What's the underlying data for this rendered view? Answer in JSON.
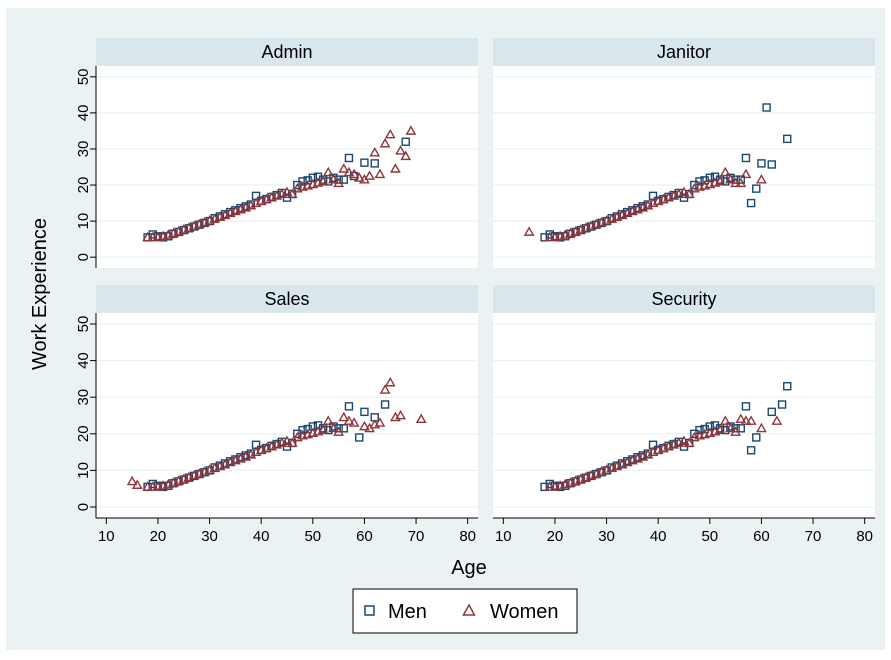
{
  "chart_data": {
    "type": "scatter",
    "xlabel": "Age",
    "ylabel": "Work Experience",
    "xlim": [
      8,
      82
    ],
    "ylim": [
      -3,
      53
    ],
    "xticks": [
      10,
      20,
      30,
      40,
      50,
      60,
      70,
      80
    ],
    "yticks": [
      0,
      10,
      20,
      30,
      40,
      50
    ],
    "grid": true,
    "legend": {
      "position": "bottom-center",
      "entries": [
        "Men",
        "Women"
      ]
    },
    "colors": {
      "men": "#1a476f",
      "women": "#90353b",
      "outer_bg": "#eaf2f3",
      "strip_bg": "#d9e6eb",
      "grid": "#eaf2f3"
    },
    "panels": [
      {
        "title": "Admin",
        "series": [
          {
            "name": "Men",
            "marker": "square",
            "x": [
              18,
              19,
              20,
              21,
              22,
              23,
              24,
              25,
              26,
              27,
              28,
              29,
              30,
              31,
              32,
              33,
              34,
              35,
              36,
              37,
              38,
              39,
              40,
              41,
              42,
              43,
              44,
              45,
              46,
              47,
              48,
              49,
              50,
              51,
              52,
              53,
              54,
              55,
              56,
              57,
              58,
              60,
              62,
              68
            ],
            "y": [
              5.5,
              6.3,
              5.8,
              5.5,
              5.8,
              6.5,
              7,
              7.5,
              8,
              8.5,
              9,
              9.5,
              10,
              10.8,
              11.3,
              11.9,
              12.5,
              13,
              13.6,
              14.1,
              14.6,
              17,
              15.6,
              16.1,
              16.7,
              17.2,
              17.8,
              16.5,
              17.5,
              20,
              21,
              21.3,
              22,
              22.3,
              21.5,
              21,
              22,
              21.5,
              21.5,
              27.5,
              22.5,
              26.2,
              26,
              32
            ]
          },
          {
            "name": "Women",
            "marker": "triangle",
            "x": [
              18,
              19,
              20,
              21,
              22,
              23,
              24,
              25,
              26,
              27,
              28,
              29,
              30,
              31,
              32,
              33,
              34,
              35,
              36,
              37,
              38,
              39,
              40,
              41,
              42,
              43,
              44,
              45,
              46,
              47,
              48,
              49,
              50,
              51,
              52,
              53,
              54,
              55,
              56,
              57,
              58,
              59,
              60,
              61,
              62,
              63,
              64,
              65,
              66,
              67,
              68,
              69
            ],
            "y": [
              5.5,
              5.5,
              5.5,
              5.8,
              6.2,
              6.6,
              7.1,
              7.6,
              8.1,
              8.6,
              9.1,
              9.6,
              10.1,
              10.6,
              11.1,
              11.6,
              12.2,
              12.7,
              13.2,
              13.7,
              14.3,
              15,
              15.5,
              16,
              16.5,
              17,
              17.5,
              18,
              17.5,
              19,
              19.5,
              19.8,
              20.2,
              20.6,
              21,
              23.5,
              21.5,
              20.5,
              24.5,
              23.5,
              23,
              22,
              21.5,
              22.5,
              29,
              23,
              31.5,
              34,
              24.5,
              29.5,
              28,
              35
            ]
          }
        ]
      },
      {
        "title": "Janitor",
        "series": [
          {
            "name": "Men",
            "marker": "square",
            "x": [
              18,
              19,
              20,
              21,
              22,
              23,
              24,
              25,
              26,
              27,
              28,
              29,
              30,
              31,
              32,
              33,
              34,
              35,
              36,
              37,
              38,
              39,
              40,
              41,
              42,
              43,
              44,
              45,
              46,
              47,
              48,
              49,
              50,
              51,
              52,
              53,
              54,
              55,
              56,
              57,
              58,
              59,
              60,
              61,
              62,
              65
            ],
            "y": [
              5.5,
              6.3,
              5.8,
              5.5,
              5.8,
              6.5,
              7,
              7.5,
              8,
              8.5,
              9,
              9.5,
              10,
              10.8,
              11.3,
              11.9,
              12.5,
              13,
              13.6,
              14.1,
              14.6,
              17,
              15.6,
              16.1,
              16.7,
              17.2,
              17.8,
              16.5,
              17.5,
              20,
              21,
              21.3,
              22,
              22.3,
              21.5,
              21,
              22,
              21.5,
              21.5,
              27.5,
              15,
              19,
              26,
              41.5,
              25.7,
              32.8
            ]
          },
          {
            "name": "Women",
            "marker": "triangle",
            "x": [
              15,
              19,
              20,
              21,
              22,
              23,
              24,
              25,
              26,
              27,
              28,
              29,
              30,
              31,
              32,
              33,
              34,
              35,
              36,
              37,
              38,
              39,
              40,
              41,
              42,
              43,
              44,
              45,
              46,
              47,
              48,
              49,
              50,
              51,
              52,
              53,
              54,
              55,
              56,
              57,
              60
            ],
            "y": [
              7,
              5.5,
              5.5,
              5.8,
              6.2,
              6.6,
              7.1,
              7.6,
              8.1,
              8.6,
              9.1,
              9.6,
              10.1,
              10.6,
              11.1,
              11.6,
              12.2,
              12.7,
              13.2,
              13.7,
              14.3,
              15,
              15.5,
              16,
              16.5,
              17,
              17.5,
              18,
              17.5,
              19,
              19.5,
              19.8,
              20.2,
              20.6,
              21,
              23.5,
              21.5,
              20.5,
              20.5,
              23,
              21.5
            ]
          }
        ]
      },
      {
        "title": "Sales",
        "series": [
          {
            "name": "Men",
            "marker": "square",
            "x": [
              18,
              19,
              20,
              21,
              22,
              23,
              24,
              25,
              26,
              27,
              28,
              29,
              30,
              31,
              32,
              33,
              34,
              35,
              36,
              37,
              38,
              39,
              40,
              41,
              42,
              43,
              44,
              45,
              46,
              47,
              48,
              49,
              50,
              51,
              52,
              53,
              54,
              55,
              56,
              57,
              59,
              60,
              62,
              64
            ],
            "y": [
              5.5,
              6.3,
              5.8,
              5.5,
              5.8,
              6.5,
              7,
              7.5,
              8,
              8.5,
              9,
              9.5,
              10,
              10.8,
              11.3,
              11.9,
              12.5,
              13,
              13.6,
              14.1,
              14.6,
              17,
              15.6,
              16.1,
              16.7,
              17.2,
              17.8,
              16.5,
              17.5,
              20,
              21,
              21.3,
              22,
              22.3,
              21.5,
              21,
              22,
              21.5,
              21.5,
              27.5,
              19,
              26,
              24.5,
              28
            ]
          },
          {
            "name": "Women",
            "marker": "triangle",
            "x": [
              15,
              16,
              18,
              19,
              20,
              21,
              22,
              23,
              24,
              25,
              26,
              27,
              28,
              29,
              30,
              31,
              32,
              33,
              34,
              35,
              36,
              37,
              38,
              39,
              40,
              41,
              42,
              43,
              44,
              45,
              46,
              47,
              48,
              49,
              50,
              51,
              52,
              53,
              54,
              55,
              56,
              57,
              58,
              60,
              61,
              62,
              63,
              64,
              65,
              66,
              67,
              71
            ],
            "y": [
              7,
              6,
              5.5,
              5.5,
              5.5,
              5.8,
              6.2,
              6.6,
              7.1,
              7.6,
              8.1,
              8.6,
              9.1,
              9.6,
              10.1,
              10.6,
              11.1,
              11.6,
              12.2,
              12.7,
              13.2,
              13.7,
              14.3,
              15,
              15.5,
              16,
              16.5,
              17,
              17.5,
              18,
              17.5,
              19,
              19.5,
              19.8,
              20.2,
              20.6,
              21,
              23.5,
              21.5,
              20.5,
              24.5,
              23.5,
              23,
              22,
              21.5,
              22.5,
              23,
              32,
              34,
              24.5,
              25,
              24
            ]
          }
        ]
      },
      {
        "title": "Security",
        "series": [
          {
            "name": "Men",
            "marker": "square",
            "x": [
              18,
              19,
              20,
              21,
              22,
              23,
              24,
              25,
              26,
              27,
              28,
              29,
              30,
              31,
              32,
              33,
              34,
              35,
              36,
              37,
              38,
              39,
              40,
              41,
              42,
              43,
              44,
              45,
              46,
              47,
              48,
              49,
              50,
              51,
              52,
              53,
              54,
              55,
              56,
              57,
              58,
              59,
              62,
              64,
              65
            ],
            "y": [
              5.5,
              6.3,
              5.8,
              5.5,
              5.8,
              6.5,
              7,
              7.5,
              8,
              8.5,
              9,
              9.5,
              10,
              10.8,
              11.3,
              11.9,
              12.5,
              13,
              13.6,
              14.1,
              14.6,
              17,
              15.6,
              16.1,
              16.7,
              17.2,
              17.8,
              16.5,
              17.5,
              20,
              21,
              21.3,
              22,
              22.3,
              21.5,
              21,
              22,
              21.5,
              21.5,
              27.5,
              15.5,
              19,
              26,
              28,
              33
            ]
          },
          {
            "name": "Women",
            "marker": "triangle",
            "x": [
              19,
              20,
              21,
              22,
              23,
              24,
              25,
              26,
              27,
              28,
              29,
              30,
              31,
              32,
              33,
              34,
              35,
              36,
              37,
              38,
              39,
              40,
              41,
              42,
              43,
              44,
              45,
              46,
              47,
              48,
              49,
              50,
              51,
              52,
              53,
              54,
              55,
              56,
              57,
              58,
              60,
              63
            ],
            "y": [
              5.5,
              5.5,
              5.8,
              6.2,
              6.6,
              7.1,
              7.6,
              8.1,
              8.6,
              9.1,
              9.6,
              10.1,
              10.6,
              11.1,
              11.6,
              12.2,
              12.7,
              13.2,
              13.7,
              14.3,
              15,
              15.5,
              16,
              16.5,
              17,
              17.5,
              18,
              17.5,
              19,
              19.5,
              19.8,
              20.2,
              20.6,
              21,
              23.5,
              21.5,
              20.5,
              24,
              23.5,
              23.5,
              21.5,
              23.5
            ]
          }
        ]
      }
    ]
  }
}
